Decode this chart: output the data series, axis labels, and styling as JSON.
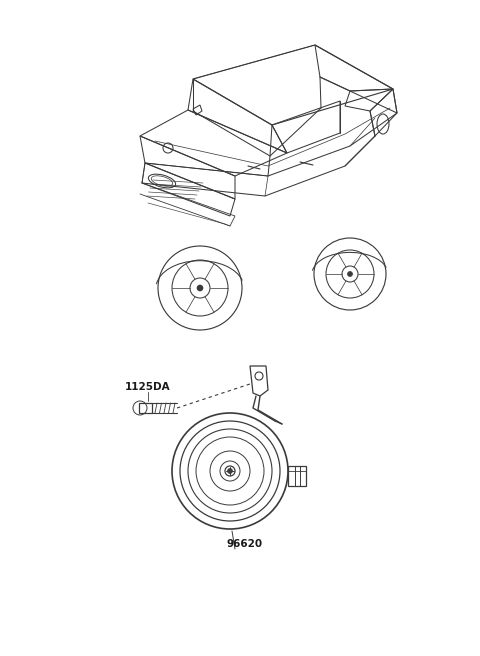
{
  "bg_color": "#ffffff",
  "fig_width": 4.8,
  "fig_height": 6.56,
  "dpi": 100,
  "part_label_1": "1125DA",
  "part_label_2": "96620",
  "line_color": "#3a3a3a",
  "text_color": "#1a1a1a",
  "lw": 0.75
}
